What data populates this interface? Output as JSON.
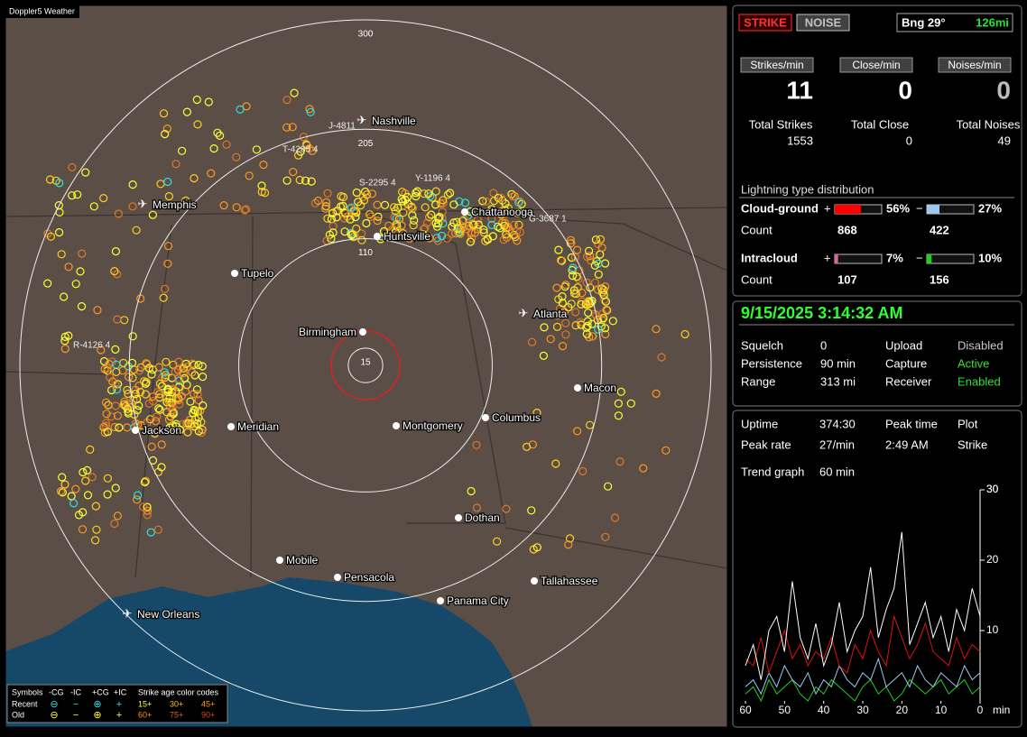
{
  "app_title": "Doppler5 Weather",
  "map": {
    "ring_scale_max": 300,
    "range_rings": [
      15,
      110,
      205,
      300
    ],
    "cities": [
      "Nashville",
      "Memphis",
      "Chattanooga",
      "Huntsville",
      "Tupelo",
      "Birmingham",
      "Atlanta",
      "Macon",
      "Columbus",
      "Montgomery",
      "Meridian",
      "Jackson",
      "Dothan",
      "Mobile",
      "Pensacola",
      "Tallahassee",
      "Panama City",
      "New Orleans"
    ],
    "storms": [
      "J-4811",
      "T-4285 4",
      "S-2295 4",
      "Y-1196 4",
      "G-3687 1",
      "R-4126 4"
    ],
    "legend": {
      "symbols_label": "Symbols",
      "symbol_headers": [
        "-CG",
        "-IC",
        "+CG",
        "+IC"
      ],
      "age_label": "Strike age color codes",
      "rows": [
        {
          "name": "Recent",
          "ages": [
            "15+",
            "30+",
            "45+"
          ]
        },
        {
          "name": "Old",
          "ages": [
            "60+",
            "75+",
            "90+"
          ]
        }
      ]
    }
  },
  "header": {
    "strike_button": "STRIKE",
    "noise_button": "NOISE",
    "bearing": "Bng 29°",
    "distance": "126mi"
  },
  "rates": [
    {
      "label": "Strikes/min",
      "value": 11,
      "total_label": "Total Strikes",
      "total": 1553
    },
    {
      "label": "Close/min",
      "value": 0,
      "total_label": "Total Close",
      "total": 0
    },
    {
      "label": "Noises/min",
      "value": 0,
      "total_label": "Total Noises",
      "total": 49
    }
  ],
  "distribution": {
    "title": "Lightning type distribution",
    "count_label": "Count",
    "rows": [
      {
        "name": "Cloud-ground",
        "positive": {
          "sign": "+",
          "value": 56,
          "label": "56%",
          "color": "#ff0000",
          "count": 868
        },
        "negative": {
          "sign": "−",
          "value": 27,
          "label": "27%",
          "color": "#9cc8f0",
          "count": 422
        }
      },
      {
        "name": "Intracloud",
        "positive": {
          "sign": "+",
          "value": 7,
          "label": "7%",
          "color": "#e060a0",
          "count": 107
        },
        "negative": {
          "sign": "−",
          "value": 10,
          "label": "10%",
          "color": "#20d020",
          "count": 156
        }
      }
    ]
  },
  "status": {
    "datetime": "9/15/2025 3:14:32 AM",
    "left": [
      {
        "label": "Squelch",
        "value": "0"
      },
      {
        "label": "Persistence",
        "value": "90 min"
      },
      {
        "label": "Range",
        "value": "313 mi"
      }
    ],
    "right": [
      {
        "label": "Upload",
        "value": "Disabled",
        "color": "#c8c8c8"
      },
      {
        "label": "Capture",
        "value": "Active",
        "color": "#30e030"
      },
      {
        "label": "Receiver",
        "value": "Enabled",
        "color": "#30e030"
      }
    ]
  },
  "stats": {
    "uptime": {
      "label": "Uptime",
      "value": "374:30"
    },
    "peak_rate": {
      "label": "Peak rate",
      "value": "27/min"
    },
    "peak_time": {
      "label": "Peak time",
      "value": "2:49 AM"
    },
    "plot": {
      "label": "Plot",
      "value": "Strike"
    },
    "trend": {
      "label": "Trend graph",
      "value": "60 min"
    }
  },
  "trend_graph": {
    "type": "line",
    "x_unit_label": "min",
    "x": [
      60,
      58,
      56,
      54,
      52,
      50,
      48,
      46,
      44,
      42,
      40,
      38,
      36,
      34,
      32,
      30,
      28,
      26,
      24,
      22,
      20,
      18,
      16,
      14,
      12,
      10,
      8,
      6,
      4,
      2,
      0
    ],
    "series": [
      {
        "color": "#ffffff",
        "values": [
          5,
          8,
          3,
          10,
          12,
          7,
          17,
          9,
          6,
          11,
          5,
          8,
          14,
          7,
          10,
          12,
          19,
          9,
          13,
          16,
          24,
          8,
          11,
          14,
          9,
          12,
          7,
          13,
          10,
          16,
          12
        ]
      },
      {
        "color": "#e01010",
        "values": [
          6,
          5,
          9,
          4,
          7,
          10,
          6,
          8,
          5,
          7,
          6,
          9,
          5,
          4,
          8,
          6,
          10,
          7,
          5,
          12,
          9,
          6,
          8,
          11,
          7,
          6,
          5,
          9,
          6,
          8,
          7
        ]
      },
      {
        "color": "#9cc8f0",
        "values": [
          2,
          3,
          1,
          4,
          2,
          5,
          3,
          2,
          4,
          1,
          3,
          2,
          5,
          3,
          2,
          4,
          3,
          6,
          2,
          3,
          4,
          2,
          5,
          3,
          2,
          4,
          3,
          2,
          5,
          3,
          4
        ]
      },
      {
        "color": "#20d020",
        "values": [
          1,
          2,
          0,
          3,
          1,
          2,
          3,
          1,
          0,
          2,
          1,
          3,
          2,
          1,
          0,
          2,
          3,
          1,
          2,
          0,
          1,
          3,
          2,
          1,
          2,
          3,
          1,
          2,
          3,
          1,
          2
        ]
      }
    ],
    "xlim": [
      60,
      0
    ],
    "ylim": [
      0,
      30
    ],
    "xticks": [
      60,
      50,
      40,
      30,
      20,
      10,
      0
    ],
    "yticks": [
      10,
      20,
      30
    ]
  }
}
